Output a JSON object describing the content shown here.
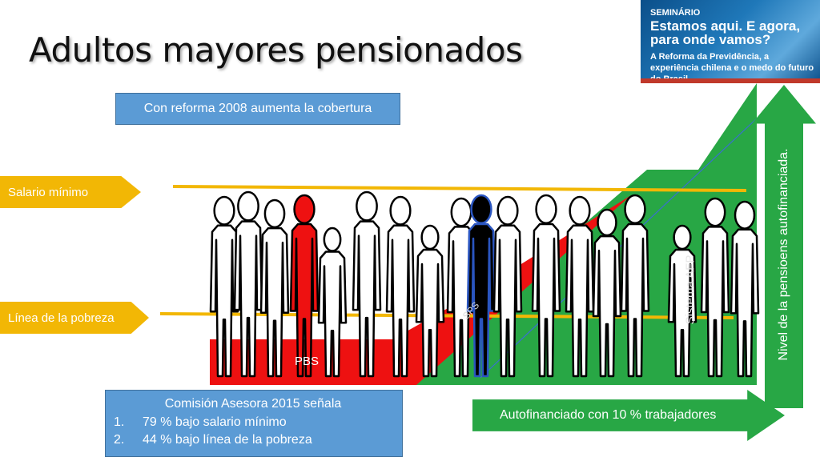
{
  "title": "Adultos mayores pensionados",
  "banner": {
    "kicker": "SEMINÁRIO",
    "headline": "Estamos aqui. E agora, para onde vamos?",
    "subtitle": "A Reforma da Previdência, a experiência chilena e o medo do futuro do Brasil"
  },
  "reforma_box": "Con reforma 2008 aumenta la cobertura",
  "salario_tag": "Salario mínimo",
  "pobreza_tag": "Línea de la pobreza",
  "pbs_label": "PBS",
  "sps_label": "SPS",
  "afp_label": "Sistema AFP",
  "comision": {
    "heading": "Comisión Asesora 2015 señala",
    "items": [
      {
        "num": "1.",
        "text": "79 % bajo salario mínimo"
      },
      {
        "num": "2.",
        "text": "44 % bajo línea de la pobreza"
      }
    ]
  },
  "autofinanciado": "Autofinanciado con 10 % trabajadores",
  "nivel": "Nivel de la pensioens autofinanciada.",
  "colors": {
    "green": "#28a745",
    "red": "#ee1111",
    "yellow": "#f2b705",
    "blue": "#5b9bd5",
    "figure_red": "#ee1111",
    "figure_black": "#000000"
  },
  "figures": [
    {
      "color": "white"
    },
    {
      "color": "white"
    },
    {
      "color": "white"
    },
    {
      "color": "red"
    },
    {
      "color": "white"
    },
    {
      "color": "white"
    },
    {
      "color": "white"
    },
    {
      "color": "white"
    },
    {
      "color": "white"
    },
    {
      "color": "black"
    },
    {
      "color": "white"
    },
    {
      "color": "white"
    },
    {
      "color": "white"
    },
    {
      "color": "white"
    },
    {
      "color": "white"
    },
    {
      "color": "white"
    },
    {
      "color": "white"
    },
    {
      "color": "white"
    }
  ]
}
